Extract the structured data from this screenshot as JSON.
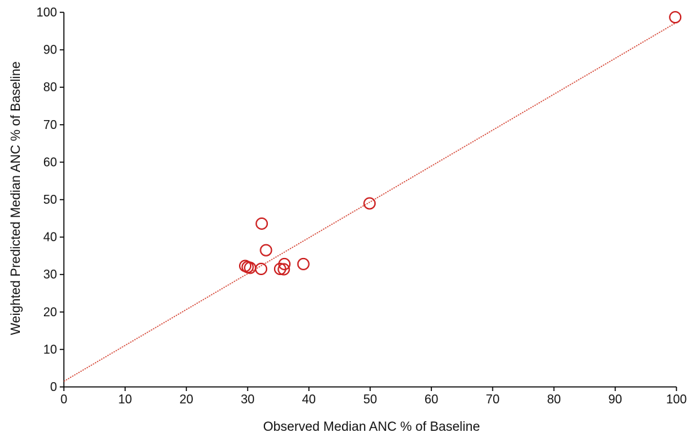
{
  "chart_data": {
    "type": "scatter",
    "xlabel": "Observed Median ANC % of Baseline",
    "ylabel": "Weighted Predicted Median ANC % of Baseline",
    "xlim": [
      0,
      100
    ],
    "ylim": [
      0,
      100
    ],
    "xticks": [
      0,
      10,
      20,
      30,
      40,
      50,
      60,
      70,
      80,
      90,
      100
    ],
    "yticks": [
      0,
      10,
      20,
      30,
      40,
      50,
      60,
      70,
      80,
      90,
      100
    ],
    "grid": false,
    "series": [
      {
        "marker": "open-circle",
        "color": "#cc1f1f",
        "points": [
          {
            "x": 29.6,
            "y": 32.3
          },
          {
            "x": 30.0,
            "y": 32.0
          },
          {
            "x": 30.4,
            "y": 31.8
          },
          {
            "x": 32.2,
            "y": 31.5
          },
          {
            "x": 32.3,
            "y": 43.6
          },
          {
            "x": 33.0,
            "y": 36.5
          },
          {
            "x": 35.3,
            "y": 31.5
          },
          {
            "x": 35.9,
            "y": 31.4
          },
          {
            "x": 36.0,
            "y": 32.8
          },
          {
            "x": 39.1,
            "y": 32.8
          },
          {
            "x": 49.9,
            "y": 49.0
          },
          {
            "x": 99.8,
            "y": 98.7
          }
        ]
      }
    ],
    "fit_line": {
      "color": "#d64a3a",
      "style": "dotted",
      "x": [
        0,
        100
      ],
      "y": [
        1.5,
        97.3
      ]
    }
  }
}
